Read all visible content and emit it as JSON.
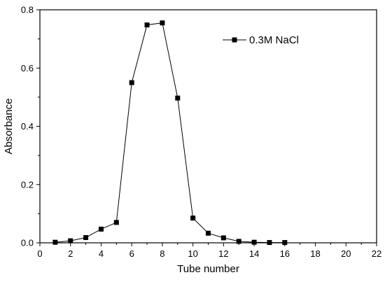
{
  "chart_data": {
    "type": "line",
    "title": "",
    "xlabel": "Tube number",
    "ylabel": "Absorbance",
    "xlim": [
      0,
      22
    ],
    "ylim": [
      0,
      0.8
    ],
    "x_ticks": [
      0,
      2,
      4,
      6,
      8,
      10,
      12,
      14,
      16,
      18,
      20,
      22
    ],
    "y_ticks": [
      0.0,
      0.2,
      0.4,
      0.6,
      0.8
    ],
    "x_tick_labels": [
      "0",
      "2",
      "4",
      "6",
      "8",
      "10",
      "12",
      "14",
      "16",
      "18",
      "20",
      "22"
    ],
    "y_tick_labels": [
      "0.0",
      "0.2",
      "0.4",
      "0.6",
      "0.8"
    ],
    "grid": false,
    "legend_position": "top-right",
    "series": [
      {
        "name": "0.3M NaCl",
        "marker": "square",
        "color": "#000000",
        "x": [
          1,
          2,
          3,
          4,
          5,
          6,
          7,
          8,
          9,
          10,
          11,
          12,
          13,
          14,
          15,
          16
        ],
        "y": [
          0.002,
          0.007,
          0.018,
          0.047,
          0.07,
          0.55,
          0.748,
          0.755,
          0.497,
          0.085,
          0.033,
          0.017,
          0.005,
          0.002,
          0.001,
          0.001
        ]
      }
    ]
  }
}
